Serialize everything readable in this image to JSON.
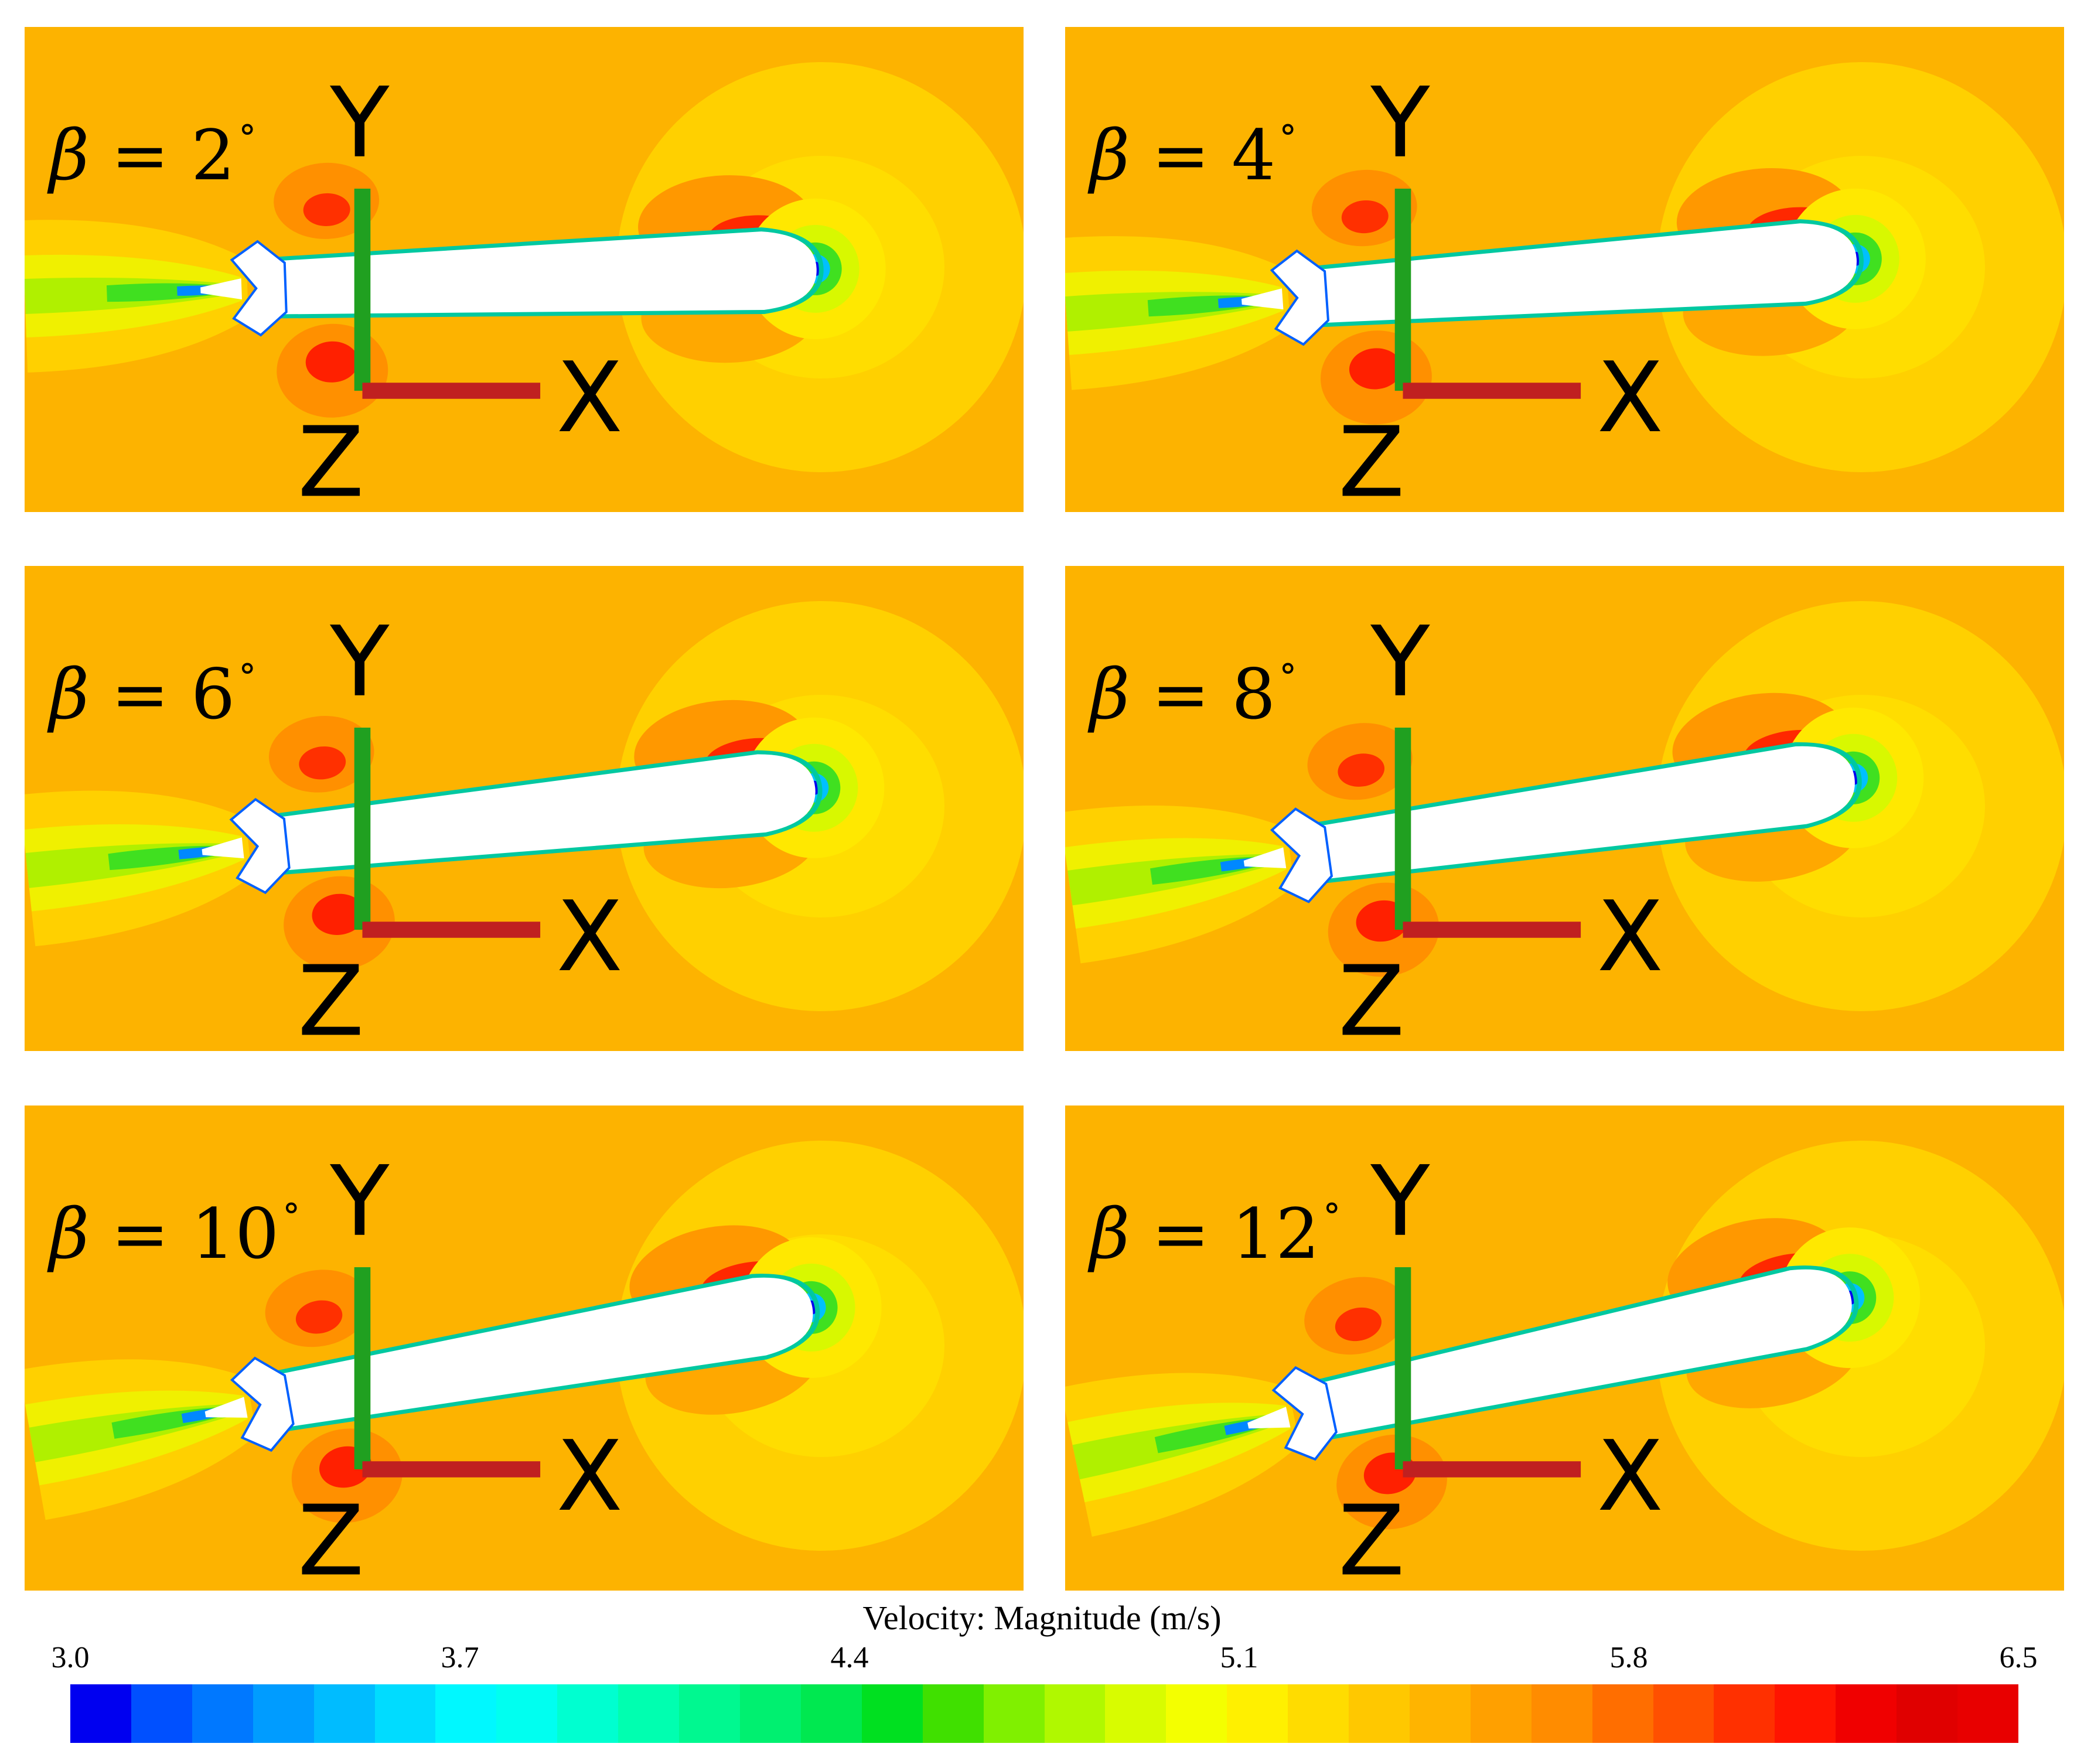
{
  "panels": [
    {
      "label": "β = 2°",
      "beta_symbol": "β",
      "beta_value": "= 2",
      "beta_unit": "°",
      "angle_deg": 2
    },
    {
      "label": "β = 4°",
      "beta_symbol": "β",
      "beta_value": "= 4",
      "beta_unit": "°",
      "angle_deg": 4
    },
    {
      "label": "β = 6°",
      "beta_symbol": "β",
      "beta_value": "= 6",
      "beta_unit": "°",
      "angle_deg": 6
    },
    {
      "label": "β = 8°",
      "beta_symbol": "β",
      "beta_value": "= 8",
      "beta_unit": "°",
      "angle_deg": 8
    },
    {
      "label": "β = 10°",
      "beta_symbol": "β",
      "beta_value": "= 10",
      "beta_unit": "°",
      "angle_deg": 10
    },
    {
      "label": "β = 12°",
      "beta_symbol": "β",
      "beta_value": "= 12",
      "beta_unit": "°",
      "angle_deg": 12
    }
  ],
  "axis_triad": {
    "y": "Y",
    "z": "Z",
    "x": "X"
  },
  "colorbar": {
    "title": "Velocity: Magnitude (m/s)",
    "ticks": [
      "3.0",
      "3.7",
      "4.4",
      "5.1",
      "5.8",
      "6.5"
    ],
    "min": 3.0,
    "max": 6.5,
    "colors": [
      "#0000F0",
      "#0050FF",
      "#0078FF",
      "#009CFF",
      "#00BCFF",
      "#00DCFF",
      "#00F8FF",
      "#00FFF0",
      "#00FFD0",
      "#00FFB0",
      "#00F890",
      "#00F070",
      "#00E850",
      "#00E020",
      "#40E000",
      "#80F000",
      "#B0F800",
      "#D8FC00",
      "#F4FF00",
      "#FFF000",
      "#FFDC00",
      "#FFC800",
      "#FFB400",
      "#FFA000",
      "#FF8C00",
      "#FF6E00",
      "#FF5000",
      "#FF3000",
      "#FF1400",
      "#F00000",
      "#E00000",
      "#E80000"
    ]
  }
}
